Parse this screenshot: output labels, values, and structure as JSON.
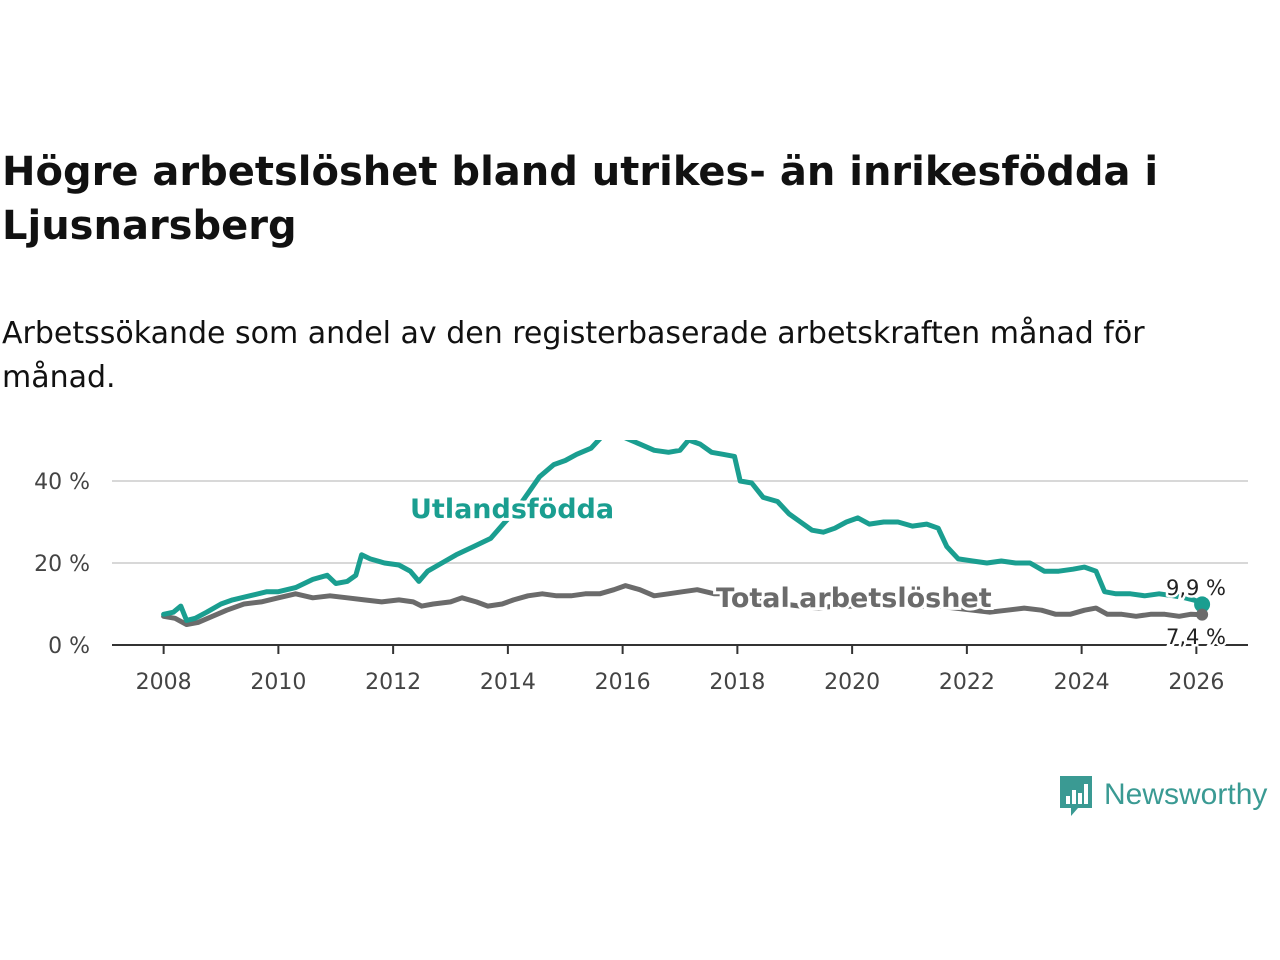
{
  "title": "Högre arbetslöshet bland utrikes- än inrikesfödda i Ljusnarsberg",
  "subtitle": "Arbetssökande som andel av den registerbaserade arbetskraften månad för månad.",
  "brand": {
    "name": "Newsworthy",
    "icon": "newsworthy-logo-icon",
    "color": "#3a9a93"
  },
  "colors": {
    "utlandsfodda": "#1a9e90",
    "total": "#6b6b6b",
    "grid": "#d8d8d8",
    "axis": "#333333"
  },
  "chart_data": {
    "type": "line",
    "title": "Högre arbetslöshet bland utrikes- än inrikesfödda i Ljusnarsberg",
    "xlabel": "",
    "ylabel": "",
    "xlim": [
      2007.1,
      2026.9
    ],
    "ylim": [
      0,
      50
    ],
    "x_ticks": [
      2008,
      2010,
      2012,
      2014,
      2016,
      2018,
      2020,
      2022,
      2024,
      2026
    ],
    "y_ticks": [
      0,
      20,
      40
    ],
    "y_tick_labels": [
      "0 %",
      "20 %",
      "40 %"
    ],
    "grid": "horizontal",
    "series": [
      {
        "name": "Utlandsfödda",
        "label": "Utlandsfödda",
        "end_label": "9,9 %",
        "color": "#1a9e90",
        "points": [
          [
            2008.0,
            7.5
          ],
          [
            2008.17,
            8
          ],
          [
            2008.3,
            9.5
          ],
          [
            2008.4,
            6
          ],
          [
            2008.55,
            6.5
          ],
          [
            2008.75,
            8
          ],
          [
            2009.0,
            10
          ],
          [
            2009.2,
            11
          ],
          [
            2009.5,
            12
          ],
          [
            2009.8,
            13
          ],
          [
            2010.0,
            13
          ],
          [
            2010.3,
            14
          ],
          [
            2010.6,
            16
          ],
          [
            2010.85,
            17
          ],
          [
            2011.0,
            15
          ],
          [
            2011.2,
            15.5
          ],
          [
            2011.35,
            17
          ],
          [
            2011.45,
            22
          ],
          [
            2011.6,
            21
          ],
          [
            2011.85,
            20
          ],
          [
            2012.1,
            19.5
          ],
          [
            2012.3,
            18
          ],
          [
            2012.45,
            15.5
          ],
          [
            2012.6,
            18
          ],
          [
            2012.85,
            20
          ],
          [
            2013.1,
            22
          ],
          [
            2013.4,
            24
          ],
          [
            2013.7,
            26
          ],
          [
            2013.95,
            30
          ],
          [
            2014.15,
            33
          ],
          [
            2014.35,
            37
          ],
          [
            2014.55,
            41
          ],
          [
            2014.8,
            44
          ],
          [
            2015.0,
            45
          ],
          [
            2015.2,
            46.5
          ],
          [
            2015.45,
            48
          ],
          [
            2015.65,
            51
          ],
          [
            2015.85,
            52
          ],
          [
            2016.05,
            50.5
          ],
          [
            2016.3,
            49
          ],
          [
            2016.55,
            47.5
          ],
          [
            2016.8,
            47
          ],
          [
            2017.0,
            47.5
          ],
          [
            2017.15,
            50
          ],
          [
            2017.35,
            49
          ],
          [
            2017.55,
            47
          ],
          [
            2017.75,
            46.5
          ],
          [
            2017.95,
            46
          ],
          [
            2018.05,
            40
          ],
          [
            2018.25,
            39.5
          ],
          [
            2018.45,
            36
          ],
          [
            2018.7,
            35
          ],
          [
            2018.9,
            32
          ],
          [
            2019.1,
            30
          ],
          [
            2019.3,
            28
          ],
          [
            2019.5,
            27.5
          ],
          [
            2019.7,
            28.5
          ],
          [
            2019.9,
            30
          ],
          [
            2020.1,
            31
          ],
          [
            2020.3,
            29.5
          ],
          [
            2020.55,
            30
          ],
          [
            2020.8,
            30
          ],
          [
            2021.05,
            29
          ],
          [
            2021.3,
            29.5
          ],
          [
            2021.5,
            28.5
          ],
          [
            2021.65,
            24
          ],
          [
            2021.85,
            21
          ],
          [
            2022.1,
            20.5
          ],
          [
            2022.35,
            20
          ],
          [
            2022.6,
            20.5
          ],
          [
            2022.85,
            20
          ],
          [
            2023.1,
            20
          ],
          [
            2023.35,
            18
          ],
          [
            2023.6,
            18
          ],
          [
            2023.85,
            18.5
          ],
          [
            2024.05,
            19
          ],
          [
            2024.25,
            18
          ],
          [
            2024.4,
            13
          ],
          [
            2024.6,
            12.5
          ],
          [
            2024.85,
            12.5
          ],
          [
            2025.1,
            12
          ],
          [
            2025.35,
            12.5
          ],
          [
            2025.6,
            12
          ],
          [
            2025.8,
            11.5
          ],
          [
            2025.95,
            11
          ],
          [
            2026.05,
            10.5
          ],
          [
            2026.1,
            9.9
          ]
        ]
      },
      {
        "name": "Total arbetslöshet",
        "label": "Total arbetslöshet",
        "end_label": "7,4 %",
        "color": "#6b6b6b",
        "points": [
          [
            2008.0,
            7
          ],
          [
            2008.2,
            6.5
          ],
          [
            2008.4,
            5
          ],
          [
            2008.6,
            5.5
          ],
          [
            2008.85,
            7
          ],
          [
            2009.1,
            8.5
          ],
          [
            2009.4,
            10
          ],
          [
            2009.7,
            10.5
          ],
          [
            2010.0,
            11.5
          ],
          [
            2010.3,
            12.5
          ],
          [
            2010.6,
            11.5
          ],
          [
            2010.9,
            12
          ],
          [
            2011.2,
            11.5
          ],
          [
            2011.5,
            11
          ],
          [
            2011.8,
            10.5
          ],
          [
            2012.1,
            11
          ],
          [
            2012.35,
            10.5
          ],
          [
            2012.5,
            9.5
          ],
          [
            2012.7,
            10
          ],
          [
            2013.0,
            10.5
          ],
          [
            2013.2,
            11.5
          ],
          [
            2013.45,
            10.5
          ],
          [
            2013.65,
            9.5
          ],
          [
            2013.9,
            10
          ],
          [
            2014.1,
            11
          ],
          [
            2014.35,
            12
          ],
          [
            2014.6,
            12.5
          ],
          [
            2014.85,
            12
          ],
          [
            2015.1,
            12
          ],
          [
            2015.35,
            12.5
          ],
          [
            2015.6,
            12.5
          ],
          [
            2015.85,
            13.5
          ],
          [
            2016.05,
            14.5
          ],
          [
            2016.3,
            13.5
          ],
          [
            2016.55,
            12
          ],
          [
            2016.8,
            12.5
          ],
          [
            2017.05,
            13
          ],
          [
            2017.3,
            13.5
          ],
          [
            2017.6,
            12.5
          ],
          [
            2017.9,
            12.5
          ],
          [
            2018.2,
            11.5
          ],
          [
            2018.5,
            11
          ],
          [
            2018.8,
            10
          ],
          [
            2019.1,
            9.5
          ],
          [
            2019.4,
            9
          ],
          [
            2019.7,
            9.5
          ],
          [
            2020.0,
            9.5
          ],
          [
            2020.3,
            10.5
          ],
          [
            2020.6,
            10
          ],
          [
            2020.9,
            10
          ],
          [
            2021.2,
            9.5
          ],
          [
            2021.5,
            9.5
          ],
          [
            2021.8,
            9
          ],
          [
            2022.1,
            8.5
          ],
          [
            2022.4,
            8
          ],
          [
            2022.7,
            8.5
          ],
          [
            2023.0,
            9
          ],
          [
            2023.3,
            8.5
          ],
          [
            2023.55,
            7.5
          ],
          [
            2023.8,
            7.5
          ],
          [
            2024.05,
            8.5
          ],
          [
            2024.25,
            9
          ],
          [
            2024.45,
            7.5
          ],
          [
            2024.7,
            7.5
          ],
          [
            2024.95,
            7
          ],
          [
            2025.2,
            7.5
          ],
          [
            2025.45,
            7.5
          ],
          [
            2025.7,
            7
          ],
          [
            2025.9,
            7.5
          ],
          [
            2026.1,
            7.4
          ]
        ]
      }
    ]
  }
}
